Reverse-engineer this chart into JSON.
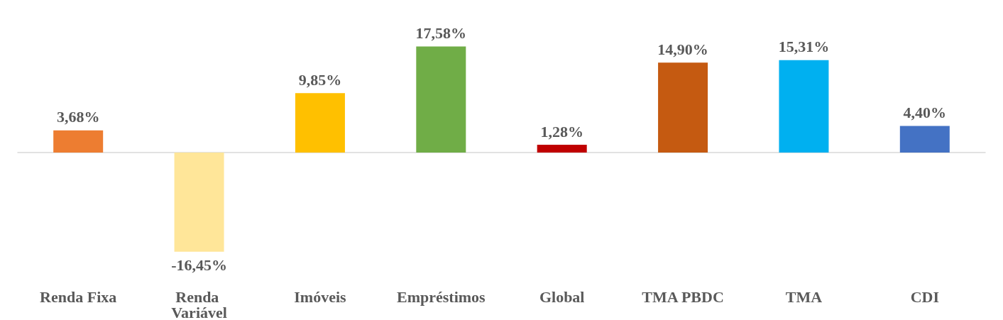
{
  "chart_data": {
    "type": "bar",
    "categories": [
      "Renda Fixa",
      "Renda Variável",
      "Imóveis",
      "Empréstimos",
      "Global",
      "TMA PBDC",
      "TMA",
      "CDI"
    ],
    "values": [
      3.68,
      -16.45,
      9.85,
      17.58,
      1.28,
      14.9,
      15.31,
      4.4
    ],
    "colors": [
      "#ed7d31",
      "#ffe699",
      "#ffc000",
      "#70ad47",
      "#c00000",
      "#c55a11",
      "#00b0f0",
      "#4472c4"
    ],
    "value_labels": [
      "3,68%",
      "-16,45%",
      "9,85%",
      "17,58%",
      "1,28%",
      "14,90%",
      "15,31%",
      "4,40%"
    ],
    "grid": false
  }
}
